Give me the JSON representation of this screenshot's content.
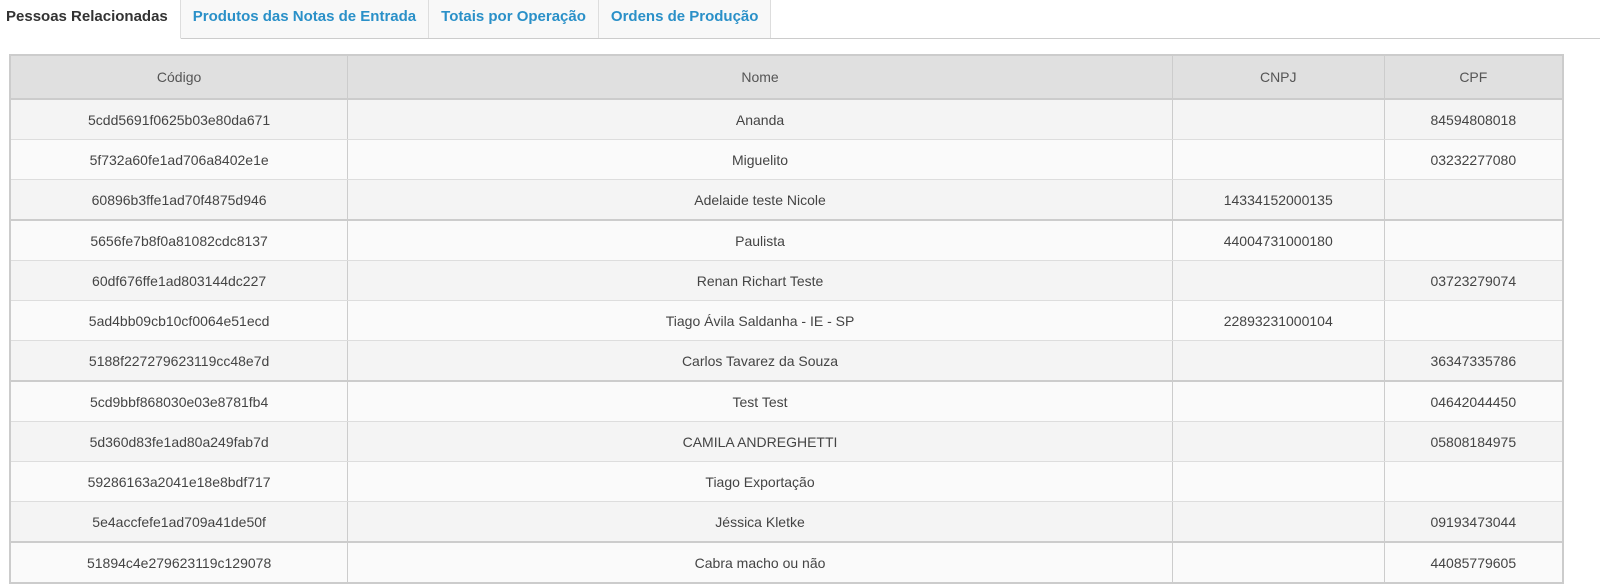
{
  "tabs": [
    {
      "label": "Pessoas Relacionadas",
      "active": true
    },
    {
      "label": "Produtos das Notas de Entrada"
    },
    {
      "label": "Totais por Operação"
    },
    {
      "label": "Ordens de Produção"
    }
  ],
  "table": {
    "headers": [
      "Código",
      "Nome",
      "CNPJ",
      "CPF"
    ],
    "rows": [
      [
        "5cdd5691f0625b03e80da671",
        "Ananda",
        "",
        "84594808018"
      ],
      [
        "5f732a60fe1ad706a8402e1e",
        "Miguelito",
        "",
        "03232277080"
      ],
      [
        "60896b3ffe1ad70f4875d946",
        "Adelaide teste Nicole",
        "14334152000135",
        ""
      ],
      [
        "5656fe7b8f0a81082cdc8137",
        "Paulista",
        "44004731000180",
        ""
      ],
      [
        "60df676ffe1ad803144dc227",
        "Renan Richart Teste",
        "",
        "03723279074"
      ],
      [
        "5ad4bb09cb10cf0064e51ecd",
        "Tiago Ávila Saldanha - IE - SP",
        "22893231000104",
        ""
      ],
      [
        "5188f227279623119cc48e7d",
        "Carlos Tavarez da Souza",
        "",
        "36347335786"
      ],
      [
        "5cd9bbf868030e03e8781fb4",
        "Test Test",
        "",
        "04642044450"
      ],
      [
        "5d360d83fe1ad80a249fab7d",
        "CAMILA ANDREGHETTI",
        "",
        "05808184975"
      ],
      [
        "59286163a2041e18e8bdf717",
        "Tiago Exportação",
        "",
        ""
      ],
      [
        "5e4accfefe1ad709a41de50f",
        "Jéssica Kletke",
        "",
        "09193473044"
      ],
      [
        "51894c4e279623119c129078",
        "Cabra macho ou não",
        "",
        "44085779605"
      ]
    ]
  }
}
